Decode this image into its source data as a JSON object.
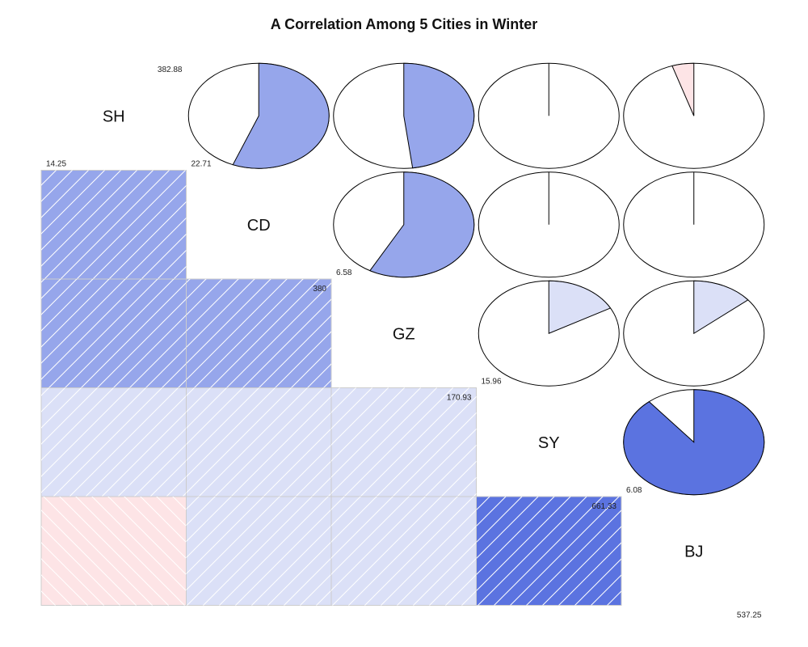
{
  "chart_data": {
    "type": "corrgram",
    "title": "A Correlation Among 5 Cities in Winter",
    "variables": [
      "SH",
      "CD",
      "GZ",
      "SY",
      "BJ"
    ],
    "ranges": [
      {
        "min": "14.25",
        "max": "382.88"
      },
      {
        "min": "22.71",
        "max": "380"
      },
      {
        "min": "6.58",
        "max": "170.93"
      },
      {
        "min": "15.96",
        "max": "661.33"
      },
      {
        "min": "6.08",
        "max": "537.25"
      }
    ],
    "correlation_matrix": [
      [
        1.0,
        0.56,
        0.48,
        0.0,
        -0.05
      ],
      [
        0.56,
        1.0,
        0.58,
        0.0,
        0.0
      ],
      [
        0.48,
        0.58,
        1.0,
        0.17,
        0.14
      ],
      [
        0.0,
        0.0,
        0.17,
        1.0,
        0.89
      ],
      [
        -0.05,
        0.0,
        0.14,
        0.89,
        1.0
      ]
    ],
    "lower_panel": "shade",
    "upper_panel": "pie",
    "colors": {
      "positive_strong": "#5b73e0",
      "positive_medium": "#96a6eb",
      "positive_weak": "#dbe0f7",
      "negative_weak": "#fde4e6",
      "outline": "#000000",
      "cell_border": "#cccccc"
    }
  }
}
